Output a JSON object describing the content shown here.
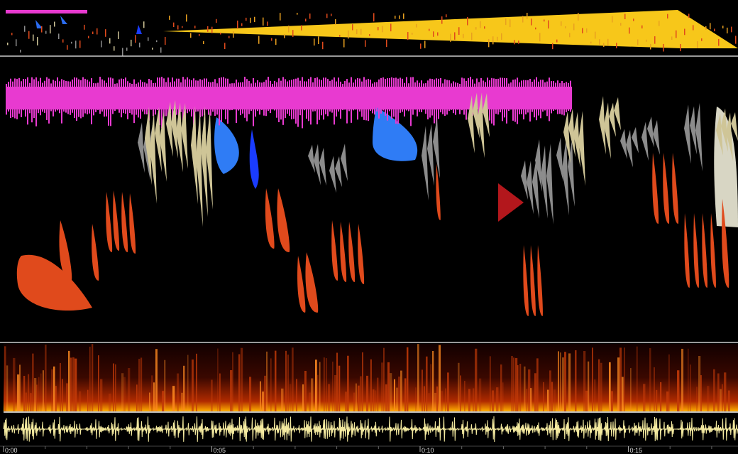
{
  "timeline": {
    "labels": [
      "0:00",
      "0:05",
      "0:10",
      "0:15"
    ]
  }
}
